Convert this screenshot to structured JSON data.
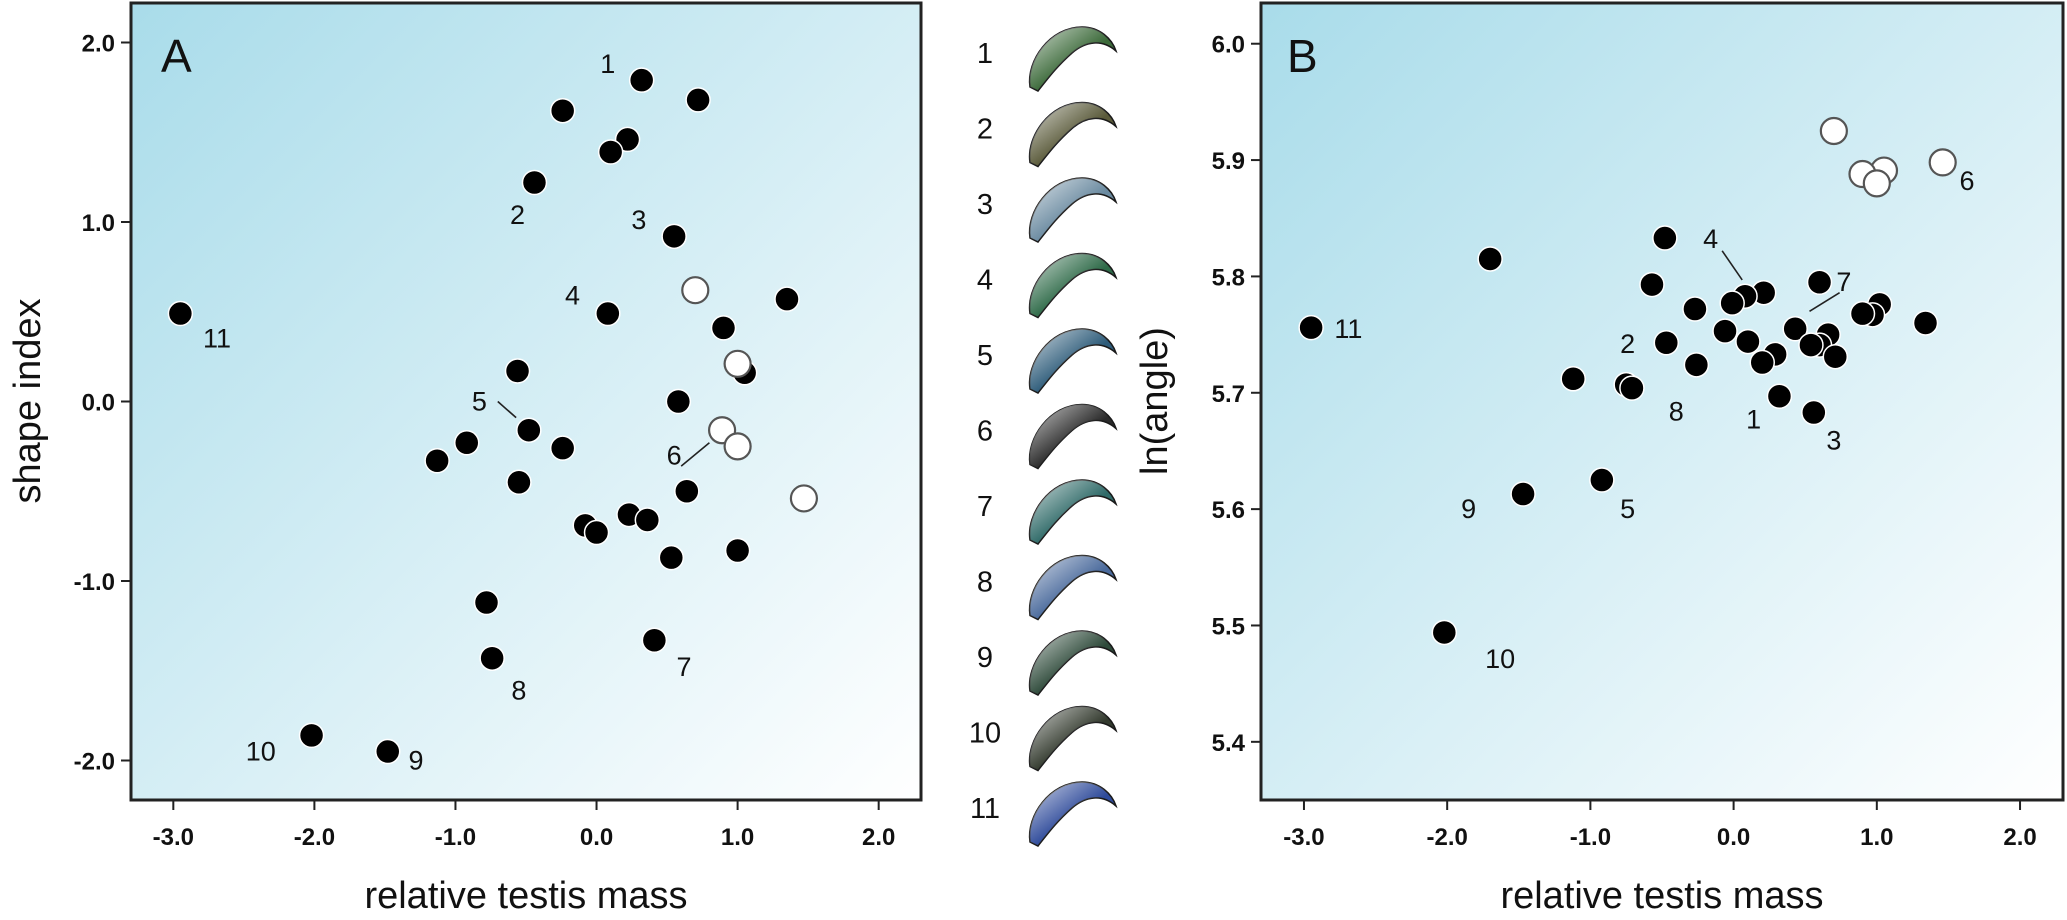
{
  "figure": {
    "panels": [
      {
        "letter": "A",
        "xlabel": "relative testis mass",
        "ylabel": "shape index"
      },
      {
        "letter": "B",
        "xlabel": "relative testis mass",
        "ylabel": "ln(angle)"
      }
    ],
    "legend": {
      "numbers": [
        "1",
        "2",
        "3",
        "4",
        "5",
        "6",
        "7",
        "8",
        "9",
        "10",
        "11"
      ],
      "shape_colors": [
        "#3c6a3a",
        "#5a5a3a",
        "#6a8aa0",
        "#2e6a48",
        "#2e5c7a",
        "#2a2a2a",
        "#2f6a68",
        "#4a6a9c",
        "#2e4a3a",
        "#333a2e",
        "#2e4a9a"
      ]
    },
    "colors": {
      "background_gradient": [
        "#a9dcea",
        "#ffffff"
      ],
      "filled_point": "#000000",
      "open_point_stroke": "#555555"
    }
  },
  "chart_data": [
    {
      "type": "scatter",
      "title": "A",
      "xlabel": "relative testis mass",
      "ylabel": "shape index",
      "xlim": [
        -3.3,
        2.3
      ],
      "ylim": [
        -2.22,
        2.22
      ],
      "xticks": [
        "-3.0",
        "-2.0",
        "-1.0",
        "0.0",
        "1.0",
        "2.0"
      ],
      "yticks": [
        "-2.0",
        "-1.0",
        "0.0",
        "1.0",
        "2.0"
      ],
      "xtick_values": [
        -3,
        -2,
        -1,
        0,
        1,
        2
      ],
      "ytick_values": [
        -2,
        -1,
        0,
        1,
        2
      ],
      "grid": false,
      "series": [
        {
          "marker": "filled",
          "points": [
            {
              "x": 0.32,
              "y": 1.79
            },
            {
              "x": 0.72,
              "y": 1.68
            },
            {
              "x": -0.24,
              "y": 1.62
            },
            {
              "x": 0.22,
              "y": 1.46
            },
            {
              "x": 0.1,
              "y": 1.39
            },
            {
              "x": -0.44,
              "y": 1.22
            },
            {
              "x": 0.55,
              "y": 0.92
            },
            {
              "x": 1.35,
              "y": 0.57
            },
            {
              "x": 0.08,
              "y": 0.49
            },
            {
              "x": 0.9,
              "y": 0.41
            },
            {
              "x": -2.95,
              "y": 0.49
            },
            {
              "x": -0.56,
              "y": 0.17
            },
            {
              "x": 1.05,
              "y": 0.16
            },
            {
              "x": 0.58,
              "y": 0.0
            },
            {
              "x": -0.48,
              "y": -0.16
            },
            {
              "x": -0.92,
              "y": -0.23
            },
            {
              "x": -0.24,
              "y": -0.26
            },
            {
              "x": -1.13,
              "y": -0.33
            },
            {
              "x": -0.55,
              "y": -0.45
            },
            {
              "x": 0.64,
              "y": -0.5
            },
            {
              "x": 0.23,
              "y": -0.63
            },
            {
              "x": 0.36,
              "y": -0.66
            },
            {
              "x": -0.08,
              "y": -0.69
            },
            {
              "x": 0.0,
              "y": -0.73
            },
            {
              "x": 1.0,
              "y": -0.83
            },
            {
              "x": 0.53,
              "y": -0.87
            },
            {
              "x": -0.78,
              "y": -1.12
            },
            {
              "x": 0.41,
              "y": -1.33
            },
            {
              "x": -0.74,
              "y": -1.43
            },
            {
              "x": -2.02,
              "y": -1.86
            },
            {
              "x": -1.48,
              "y": -1.95
            }
          ]
        },
        {
          "marker": "open",
          "points": [
            {
              "x": 0.7,
              "y": 0.62
            },
            {
              "x": 1.0,
              "y": 0.21
            },
            {
              "x": 0.89,
              "y": -0.16
            },
            {
              "x": 1.0,
              "y": -0.25
            },
            {
              "x": 1.47,
              "y": -0.54
            }
          ]
        }
      ],
      "annotations": [
        {
          "text": "1",
          "x": 0.08,
          "y": 1.88
        },
        {
          "text": "2",
          "x": -0.56,
          "y": 1.04
        },
        {
          "text": "3",
          "x": 0.3,
          "y": 1.01
        },
        {
          "text": "4",
          "x": -0.17,
          "y": 0.59
        },
        {
          "text": "5",
          "x": -0.83,
          "y": 0.0
        },
        {
          "text": "6",
          "x": 0.55,
          "y": -0.3
        },
        {
          "text": "7",
          "x": 0.62,
          "y": -1.48
        },
        {
          "text": "8",
          "x": -0.55,
          "y": -1.61
        },
        {
          "text": "9",
          "x": -1.28,
          "y": -2.0
        },
        {
          "text": "10",
          "x": -2.38,
          "y": -1.95
        },
        {
          "text": "11",
          "x": -2.69,
          "y": 0.35
        }
      ],
      "leader_lines": [
        {
          "from": [
            -0.7,
            0.0
          ],
          "to": [
            -0.57,
            -0.09
          ]
        },
        {
          "from": [
            0.6,
            -0.36
          ],
          "to": [
            0.8,
            -0.23
          ]
        }
      ]
    },
    {
      "type": "scatter",
      "title": "B",
      "xlabel": "relative testis mass",
      "ylabel": "ln(angle)",
      "xlim": [
        -3.3,
        2.3
      ],
      "ylim": [
        5.35,
        6.035
      ],
      "xticks": [
        "-3.0",
        "-2.0",
        "-1.0",
        "0.0",
        "1.0",
        "2.0"
      ],
      "yticks": [
        "5.4",
        "5.5",
        "5.6",
        "5.7",
        "5.8",
        "5.9",
        "6.0"
      ],
      "xtick_values": [
        -3,
        -2,
        -1,
        0,
        1,
        2
      ],
      "ytick_values": [
        5.4,
        5.5,
        5.6,
        5.7,
        5.8,
        5.9,
        6.0
      ],
      "grid": false,
      "series": [
        {
          "marker": "filled",
          "points": [
            {
              "x": -0.48,
              "y": 5.833
            },
            {
              "x": -1.7,
              "y": 5.815
            },
            {
              "x": -0.57,
              "y": 5.793
            },
            {
              "x": 0.6,
              "y": 5.795
            },
            {
              "x": 0.21,
              "y": 5.786
            },
            {
              "x": 0.08,
              "y": 5.783
            },
            {
              "x": -0.01,
              "y": 5.777
            },
            {
              "x": 1.02,
              "y": 5.776
            },
            {
              "x": -0.27,
              "y": 5.772
            },
            {
              "x": 0.97,
              "y": 5.767
            },
            {
              "x": 0.9,
              "y": 5.768
            },
            {
              "x": 1.34,
              "y": 5.76
            },
            {
              "x": -2.95,
              "y": 5.756
            },
            {
              "x": 0.43,
              "y": 5.755
            },
            {
              "x": -0.06,
              "y": 5.753
            },
            {
              "x": 0.66,
              "y": 5.75
            },
            {
              "x": -0.47,
              "y": 5.743
            },
            {
              "x": 0.1,
              "y": 5.744
            },
            {
              "x": 0.6,
              "y": 5.741
            },
            {
              "x": 0.54,
              "y": 5.741
            },
            {
              "x": 0.29,
              "y": 5.733
            },
            {
              "x": 0.71,
              "y": 5.731
            },
            {
              "x": 0.2,
              "y": 5.726
            },
            {
              "x": -0.26,
              "y": 5.724
            },
            {
              "x": -1.12,
              "y": 5.712
            },
            {
              "x": -0.75,
              "y": 5.707
            },
            {
              "x": -0.71,
              "y": 5.704
            },
            {
              "x": 0.32,
              "y": 5.697
            },
            {
              "x": 0.56,
              "y": 5.683
            },
            {
              "x": -0.92,
              "y": 5.625
            },
            {
              "x": -1.47,
              "y": 5.613
            },
            {
              "x": -2.02,
              "y": 5.494
            }
          ]
        },
        {
          "marker": "open",
          "points": [
            {
              "x": 0.7,
              "y": 5.925
            },
            {
              "x": 1.46,
              "y": 5.898
            },
            {
              "x": 1.05,
              "y": 5.891
            },
            {
              "x": 0.9,
              "y": 5.888
            },
            {
              "x": 1.0,
              "y": 5.88
            }
          ]
        }
      ],
      "annotations": [
        {
          "text": "1",
          "x": 0.14,
          "y": 5.677
        },
        {
          "text": "2",
          "x": -0.74,
          "y": 5.742
        },
        {
          "text": "3",
          "x": 0.7,
          "y": 5.659
        },
        {
          "text": "4",
          "x": -0.16,
          "y": 5.832
        },
        {
          "text": "5",
          "x": -0.74,
          "y": 5.6
        },
        {
          "text": "6",
          "x": 1.63,
          "y": 5.882
        },
        {
          "text": "7",
          "x": 0.77,
          "y": 5.795
        },
        {
          "text": "8",
          "x": -0.4,
          "y": 5.684
        },
        {
          "text": "9",
          "x": -1.85,
          "y": 5.6
        },
        {
          "text": "10",
          "x": -1.63,
          "y": 5.471
        },
        {
          "text": "11",
          "x": -2.69,
          "y": 5.755
        }
      ],
      "leader_lines": [
        {
          "from": [
            -0.08,
            5.822
          ],
          "to": [
            0.06,
            5.797
          ]
        },
        {
          "from": [
            0.74,
            5.786
          ],
          "to": [
            0.53,
            5.77
          ]
        }
      ]
    }
  ]
}
